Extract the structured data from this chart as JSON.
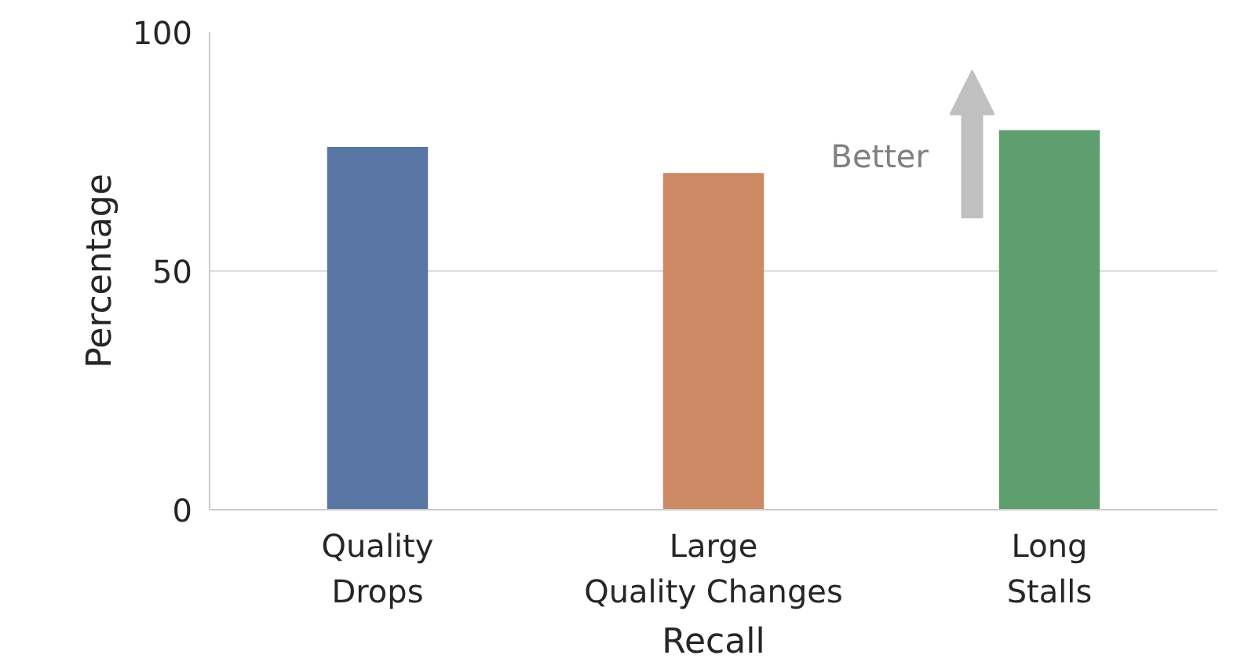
{
  "chart_data": {
    "type": "bar",
    "xlabel": "Recall",
    "ylabel": "Percentage",
    "categories": [
      "Quality\nDrops",
      "Large\nQuality Changes",
      "Long\nStalls"
    ],
    "values": [
      76,
      70.5,
      79.5
    ],
    "colors": [
      "#5875a4",
      "#cc8963",
      "#5f9e6e"
    ],
    "ylim": [
      0,
      100
    ],
    "yticks": [
      0,
      50,
      100
    ],
    "grid": "y",
    "annotations": [
      "Better"
    ]
  }
}
